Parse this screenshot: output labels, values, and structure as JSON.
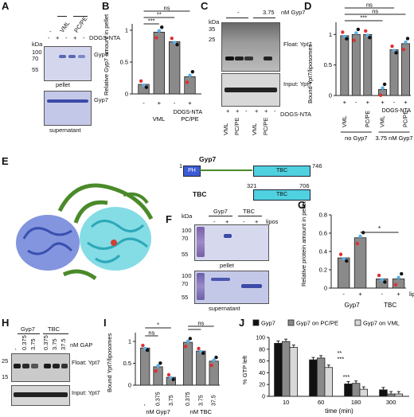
{
  "panels": {
    "A": {
      "letter": "A",
      "kda_label": "kDa",
      "header": [
        "-",
        "VML",
        "PC/PE"
      ],
      "dogs_label": "DOGS-NTA",
      "dogs_signs": [
        "-",
        "+",
        "-",
        "+",
        "-"
      ],
      "markers": [
        "100",
        "70",
        "55"
      ],
      "protein": "Gyp7",
      "pellet": "pellet",
      "supernatant": "supernatant"
    },
    "B": {
      "letter": "B",
      "ylabel": "Relative Gyp7 amount in pellet",
      "yticks": [
        "0",
        "0.5",
        "1"
      ],
      "sig": [
        "ns",
        "**",
        "***"
      ],
      "dogs_label": "DOGS-NTA",
      "signs": [
        "-",
        "+",
        "-",
        "+"
      ],
      "groups": [
        "VML",
        "PC/PE"
      ]
    },
    "C": {
      "letter": "C",
      "kda_label": "kDa",
      "header": [
        "-",
        "3.75"
      ],
      "unit": "nM Gyp7",
      "markers": [
        "35",
        "25"
      ],
      "float_label": "Float: Ypt7",
      "input_label": "Input: Ypt7",
      "signs": [
        "+",
        "+",
        "-",
        "+",
        "+",
        "-"
      ],
      "dogs_label": "DOGS-NTA",
      "lanes": [
        "VML",
        "PC/PE",
        "VML",
        "PC/PE"
      ]
    },
    "D": {
      "letter": "D",
      "ylabel": "Bound Ypt7/liposomes",
      "yticks": [
        "0",
        "0.5",
        "1"
      ],
      "sig": [
        "ns",
        "ns",
        "***"
      ],
      "signs": [
        "+",
        "-",
        "+",
        "+",
        "-",
        "+"
      ],
      "dogs_label": "DOGS-NTA",
      "lanes": [
        "VML",
        "PC/PE",
        "VML",
        "PC/PE"
      ],
      "groups": [
        "no Gyp7",
        "3.75 nM Gyp7"
      ]
    },
    "E": {
      "letter": "E",
      "title": "Gyp7",
      "full_start": "1",
      "full_end": "746",
      "ph": "PH",
      "tbc": "TBC",
      "tbc_label": "TBC",
      "tbc_start": "321",
      "tbc_end": "706"
    },
    "F": {
      "letter": "F",
      "kda_label": "kDa",
      "header": [
        "Gyp7",
        "TBC"
      ],
      "signs": [
        "-",
        "+",
        "-",
        "+"
      ],
      "lipos": "lipos",
      "markers": [
        "100",
        "70",
        "55"
      ],
      "pellet": "pellet",
      "supernatant": "supernatant"
    },
    "G": {
      "letter": "G",
      "ylabel": "Relative protein amount in pellet",
      "yticks": [
        "0",
        "0.2",
        "0.4",
        "0.6",
        "0.8"
      ],
      "sig": "*",
      "signs": [
        "-",
        "+",
        "-",
        "+"
      ],
      "lipos": "lipos",
      "groups": [
        "Gyp7",
        "TBC"
      ]
    },
    "H": {
      "letter": "H",
      "header": [
        "Gyp7",
        "TBC"
      ],
      "concs": [
        "-",
        "0.375",
        "3.75",
        "0.375",
        "3.75",
        "37.5"
      ],
      "unit": "nM GAP",
      "markers": [
        "25",
        "15"
      ],
      "float_label": "Float: Ypt7",
      "input_label": "Input: Ypt7"
    },
    "I": {
      "letter": "I",
      "ylabel": "Bound Ypt7/liposomes",
      "yticks": [
        "0",
        "0.5",
        "1"
      ],
      "sig": [
        "*",
        "ns",
        "ns"
      ],
      "concs": [
        "-",
        "0.375",
        "3.75",
        "0.375",
        "3.75",
        "37.5"
      ],
      "groups": [
        "nM Gyp7",
        "nM TBC"
      ]
    },
    "J": {
      "letter": "J",
      "legend": [
        "Gyp7",
        "Gyp7 on PC/PE",
        "Gyp7 on VML"
      ],
      "ylabel": "% GTP left",
      "yticks": [
        "0",
        "20",
        "40",
        "60",
        "80",
        "100"
      ],
      "xlabel": "time (min)",
      "times": [
        "10",
        "60",
        "180",
        "300"
      ],
      "sig": [
        "**",
        "***",
        "***"
      ]
    }
  },
  "chart_data": [
    {
      "type": "bar",
      "panel": "B",
      "categories": [
        "-",
        "VML +",
        "VML -",
        "PC/PE +"
      ],
      "values": [
        0.15,
        0.97,
        0.82,
        0.27
      ],
      "ylim": [
        0,
        1.1
      ],
      "ylabel": "Relative Gyp7 amount in pellet"
    },
    {
      "type": "bar",
      "panel": "D",
      "categories": [
        "VML +",
        "VML -",
        "PC/PE +",
        "VML +",
        "VML -",
        "PC/PE +"
      ],
      "values": [
        0.98,
        1.0,
        1.0,
        0.1,
        0.75,
        0.85
      ],
      "ylim": [
        0,
        1.2
      ],
      "ylabel": "Bound Ypt7/liposomes"
    },
    {
      "type": "bar",
      "panel": "G",
      "categories": [
        "Gyp7 -",
        "Gyp7 +",
        "TBC -",
        "TBC +"
      ],
      "values": [
        0.33,
        0.55,
        0.1,
        0.1
      ],
      "ylim": [
        0,
        0.8
      ],
      "ylabel": "Relative protein amount in pellet"
    },
    {
      "type": "bar",
      "panel": "I",
      "categories": [
        "-",
        "0.375",
        "3.75",
        "0.375",
        "3.75",
        "37.5"
      ],
      "values": [
        0.85,
        0.42,
        0.18,
        0.98,
        0.78,
        0.55
      ],
      "ylim": [
        0,
        1.2
      ],
      "ylabel": "Bound Ypt7/liposomes"
    },
    {
      "type": "bar",
      "panel": "J",
      "categories": [
        "10",
        "60",
        "180",
        "300"
      ],
      "series": [
        {
          "name": "Gyp7",
          "values": [
            90,
            62,
            21,
            11
          ]
        },
        {
          "name": "Gyp7 on PC/PE",
          "values": [
            93,
            65,
            22,
            4
          ]
        },
        {
          "name": "Gyp7 on VML",
          "values": [
            83,
            49,
            12,
            4
          ]
        }
      ],
      "ylim": [
        0,
        100
      ],
      "ylabel": "% GTP left",
      "xlabel": "time (min)"
    }
  ],
  "colors": {
    "bar": "#8a8a8a",
    "dot_red": "#e03030",
    "dot_blue": "#5ab0e8",
    "dot_black": "#111111",
    "gel": "#c8cbe8",
    "band": "#3c4aa8",
    "ph": "#3b5bd6",
    "tbc": "#4fd1e0"
  }
}
